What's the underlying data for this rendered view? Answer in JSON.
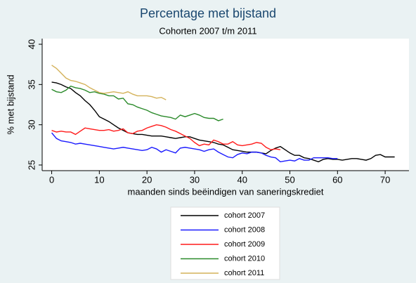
{
  "chart_data": {
    "type": "line",
    "title": "Percentage met bijstand",
    "subtitle": "Cohorten 2007 t/m 2011",
    "x_label": "maanden sinds beëindigen van saneringskrediet",
    "y_label": "% met bijstand",
    "x": [
      0,
      1,
      2,
      3,
      4,
      5,
      6,
      7,
      8,
      9,
      10,
      11,
      12,
      13,
      14,
      15,
      16,
      17,
      18,
      19,
      20,
      21,
      22,
      23,
      24,
      25,
      26,
      27,
      28,
      29,
      30,
      31,
      32,
      33,
      34,
      35,
      36,
      37,
      38,
      39,
      40,
      41,
      42,
      43,
      44,
      45,
      46,
      47,
      48,
      49,
      50,
      51,
      52,
      53,
      54,
      55,
      56,
      57,
      58,
      59,
      60,
      61,
      62,
      63,
      64,
      65,
      66,
      67,
      68,
      69,
      70,
      71,
      72
    ],
    "xlim": [
      -2,
      75
    ],
    "xticks": [
      0,
      10,
      20,
      30,
      40,
      50,
      60,
      70
    ],
    "ylim": [
      24.3,
      40.7
    ],
    "yticks": [
      25,
      30,
      35,
      40
    ],
    "series": [
      {
        "name": "cohort 2007",
        "color": "#000000",
        "values": [
          35.3,
          35.2,
          35.0,
          34.7,
          34.5,
          34.0,
          33.6,
          33.0,
          32.5,
          31.8,
          31.0,
          30.7,
          30.4,
          30.0,
          29.6,
          29.3,
          29.0,
          28.9,
          28.8,
          28.8,
          28.7,
          28.6,
          28.6,
          28.6,
          28.5,
          28.4,
          28.3,
          28.4,
          28.5,
          28.5,
          28.3,
          28.1,
          28.0,
          27.9,
          27.8,
          27.6,
          27.5,
          27.2,
          26.9,
          26.8,
          26.7,
          26.6,
          26.6,
          26.6,
          26.5,
          26.4,
          26.8,
          27.1,
          27.3,
          26.9,
          26.5,
          26.2,
          26.2,
          25.9,
          25.8,
          25.6,
          25.4,
          25.7,
          25.8,
          25.7,
          25.7,
          25.6,
          25.7,
          25.8,
          25.8,
          25.7,
          25.6,
          25.8,
          26.2,
          26.3,
          26.0,
          26.0,
          26.0
        ]
      },
      {
        "name": "cohort 2008",
        "color": "#1a1aff",
        "values": [
          29.0,
          28.3,
          28.0,
          27.9,
          27.8,
          27.6,
          27.7,
          27.6,
          27.5,
          27.4,
          27.3,
          27.2,
          27.1,
          27.0,
          27.1,
          27.2,
          27.1,
          27.0,
          26.9,
          26.8,
          26.9,
          27.2,
          27.0,
          26.6,
          26.9,
          26.7,
          26.5,
          27.1,
          27.2,
          27.1,
          27.0,
          26.9,
          26.7,
          26.9,
          27.0,
          26.6,
          26.3,
          26.0,
          25.9,
          26.3,
          26.5,
          26.4,
          26.6,
          26.6,
          26.5,
          26.2,
          26.0,
          25.9,
          25.4,
          25.5,
          25.6,
          25.5,
          25.8,
          25.6,
          25.6,
          25.9,
          25.9,
          25.9,
          25.9,
          25.8,
          25.8,
          null,
          null,
          null,
          null,
          null,
          null,
          null,
          null,
          null,
          null,
          null,
          null
        ]
      },
      {
        "name": "cohort 2009",
        "color": "#ff1a1a",
        "values": [
          29.3,
          29.1,
          29.2,
          29.1,
          29.1,
          28.8,
          29.2,
          29.6,
          29.5,
          29.4,
          29.3,
          29.3,
          29.4,
          29.2,
          29.3,
          29.5,
          29.0,
          28.9,
          29.2,
          29.3,
          29.6,
          29.8,
          30.0,
          29.9,
          29.7,
          29.4,
          29.2,
          28.9,
          28.6,
          28.3,
          27.8,
          27.4,
          27.6,
          27.5,
          28.1,
          27.9,
          27.6,
          27.6,
          27.9,
          27.5,
          27.4,
          27.5,
          27.6,
          27.8,
          27.7,
          27.2,
          26.9,
          27.0,
          26.9,
          null,
          null,
          null,
          null,
          null,
          null,
          null,
          null,
          null,
          null,
          null,
          null,
          null,
          null,
          null,
          null,
          null,
          null,
          null,
          null,
          null,
          null,
          null,
          null
        ]
      },
      {
        "name": "cohort 2010",
        "color": "#2a8a2a",
        "values": [
          34.4,
          34.1,
          34.0,
          34.3,
          34.8,
          34.6,
          34.5,
          34.3,
          34.0,
          34.1,
          33.9,
          33.8,
          33.6,
          33.6,
          33.2,
          33.3,
          32.6,
          32.5,
          32.2,
          32.0,
          31.8,
          31.5,
          31.3,
          31.1,
          31.0,
          30.9,
          30.7,
          31.2,
          31.0,
          31.2,
          31.4,
          31.2,
          30.9,
          30.8,
          30.8,
          30.5,
          30.7,
          null,
          null,
          null,
          null,
          null,
          null,
          null,
          null,
          null,
          null,
          null,
          null,
          null,
          null,
          null,
          null,
          null,
          null,
          null,
          null,
          null,
          null,
          null,
          null,
          null,
          null,
          null,
          null,
          null,
          null,
          null,
          null,
          null,
          null,
          null,
          null
        ]
      },
      {
        "name": "cohort 2011",
        "color": "#d4b25a",
        "values": [
          37.4,
          37.0,
          36.4,
          35.8,
          35.5,
          35.4,
          35.2,
          35.0,
          34.6,
          34.3,
          34.0,
          33.9,
          34.0,
          34.1,
          34.0,
          33.9,
          34.1,
          33.8,
          33.6,
          33.6,
          33.6,
          33.5,
          33.3,
          33.4,
          33.1,
          null,
          null,
          null,
          null,
          null,
          null,
          null,
          null,
          null,
          null,
          null,
          null,
          null,
          null,
          null,
          null,
          null,
          null,
          null,
          null,
          null,
          null,
          null,
          null,
          null,
          null,
          null,
          null,
          null,
          null,
          null,
          null,
          null,
          null,
          null,
          null,
          null,
          null,
          null,
          null,
          null,
          null,
          null,
          null,
          null,
          null,
          null,
          null
        ]
      }
    ]
  }
}
